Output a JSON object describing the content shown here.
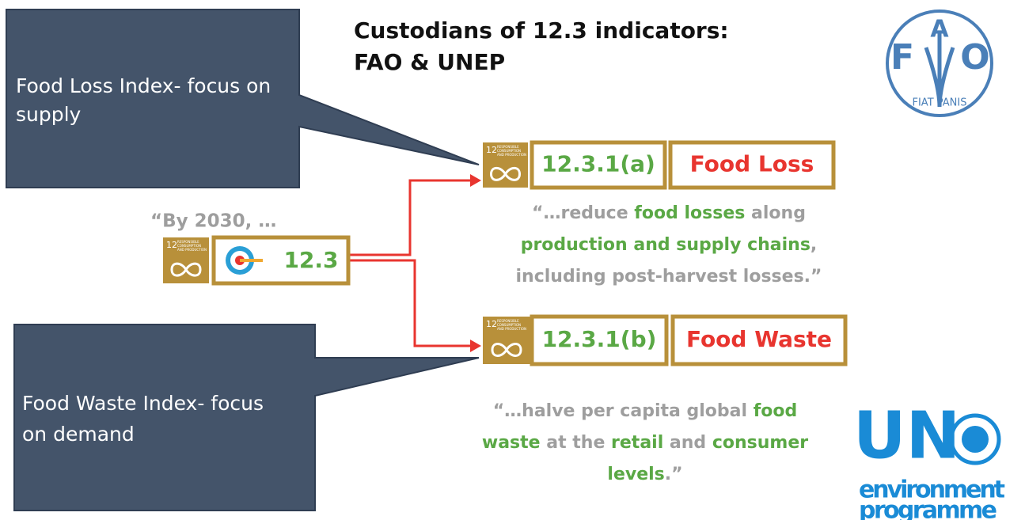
{
  "title": [
    "Custodians of 12.3 indicators:",
    "FAO & UNEP"
  ],
  "callouts": [
    {
      "lines": [
        "Food Loss Index- focus on",
        "supply"
      ]
    },
    {
      "lines": [
        "Food Waste Index- focus",
        "on demand"
      ]
    }
  ],
  "sdg_icon": {
    "number": "12",
    "label": [
      "RESPONSIBLE",
      "CONSUMPTION",
      "AND PRODUCTION"
    ]
  },
  "target": {
    "intro": "“By 2030, …",
    "label": "12.3"
  },
  "indicators": [
    {
      "code": "12.3.1(a)",
      "name": "Food Loss",
      "quote": [
        [
          {
            "text": "“…reduce ",
            "color": "#9e9e9e"
          },
          {
            "text": "food losses",
            "color": "#5aa845"
          },
          {
            "text": " along",
            "color": "#9e9e9e"
          }
        ],
        [
          {
            "text": "production and supply chains",
            "color": "#5aa845"
          },
          {
            "text": ",",
            "color": "#9e9e9e"
          }
        ],
        [
          {
            "text": "including post-harvest losses.”",
            "color": "#9e9e9e"
          }
        ]
      ]
    },
    {
      "code": "12.3.1(b)",
      "name": "Food Waste",
      "quote": [
        [
          {
            "text": "“…halve per capita global ",
            "color": "#9e9e9e"
          },
          {
            "text": "food",
            "color": "#5aa845"
          }
        ],
        [
          {
            "text": "waste",
            "color": "#5aa845"
          },
          {
            "text": " at the ",
            "color": "#9e9e9e"
          },
          {
            "text": "retail",
            "color": "#5aa845"
          },
          {
            "text": " and ",
            "color": "#9e9e9e"
          },
          {
            "text": "consumer",
            "color": "#5aa845"
          }
        ],
        [
          {
            "text": "levels",
            "color": "#5aa845"
          },
          {
            "text": ".”",
            "color": "#9e9e9e"
          }
        ]
      ]
    }
  ],
  "fao_logo": {
    "letters": [
      "F",
      "A",
      "O"
    ],
    "motto": "FIAT PANIS"
  },
  "unep_logo": {
    "mark": "UN",
    "lines": [
      "environment",
      "programme"
    ]
  }
}
